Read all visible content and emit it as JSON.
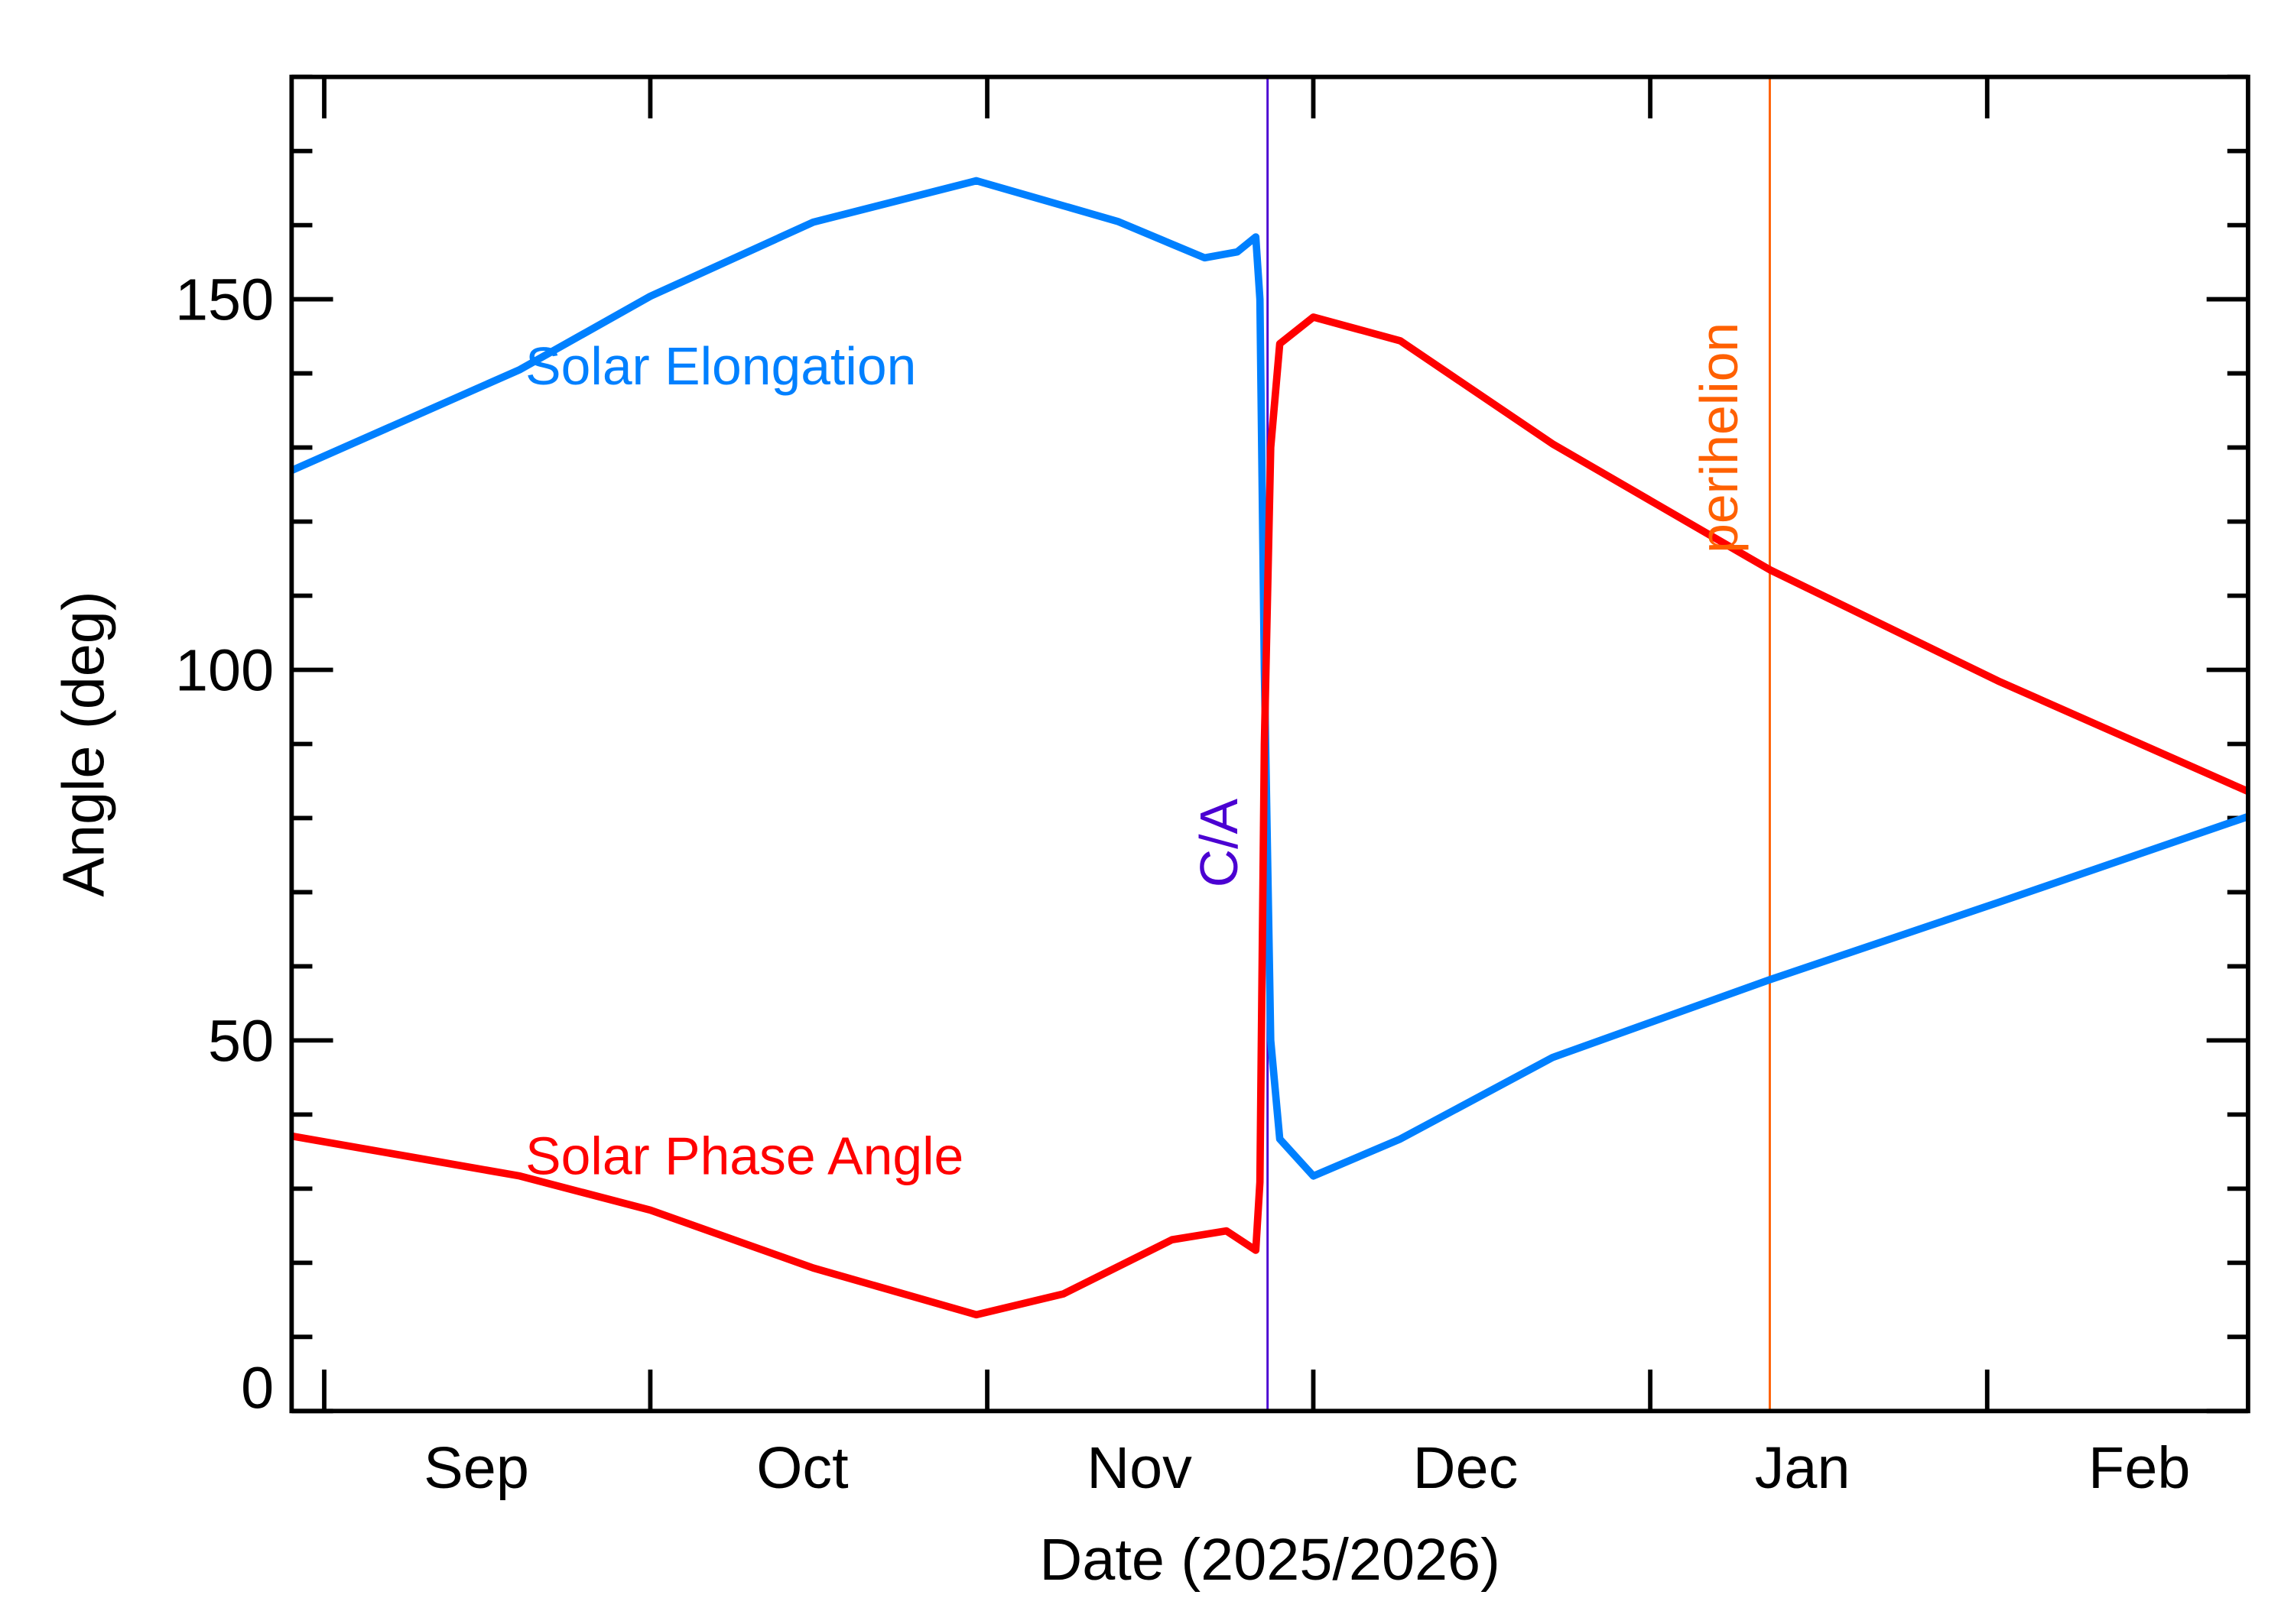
{
  "chart_data": {
    "type": "line",
    "xlabel": "Date (2025/2026)",
    "ylabel": "Angle (deg)",
    "xlim": [
      "2025-08-29",
      "2026-02-25"
    ],
    "ylim": [
      0,
      180
    ],
    "grid": false,
    "x_ticks": [
      {
        "date": "2025-09-01",
        "label": "Sep"
      },
      {
        "date": "2025-10-01",
        "label": "Oct"
      },
      {
        "date": "2025-11-01",
        "label": "Nov"
      },
      {
        "date": "2025-12-01",
        "label": "Dec"
      },
      {
        "date": "2026-01-01",
        "label": "Jan"
      },
      {
        "date": "2026-02-01",
        "label": "Feb"
      }
    ],
    "y_ticks": [
      0,
      50,
      100,
      150
    ],
    "y_minor_step": 10,
    "series": [
      {
        "name": "Solar Elongation",
        "color": "#0080ff",
        "points": [
          [
            "2025-08-29T00:00",
            126.9
          ],
          [
            "2025-09-19T00:00",
            140.5
          ],
          [
            "2025-10-01T00:00",
            150.4
          ],
          [
            "2025-10-16T00:00",
            160.4
          ],
          [
            "2025-10-31T00:00",
            166.0
          ],
          [
            "2025-11-13T00:00",
            160.5
          ],
          [
            "2025-11-21T00:00",
            155.6
          ],
          [
            "2025-11-24T00:00",
            156.4
          ],
          [
            "2025-11-25T17:00",
            158.4
          ],
          [
            "2025-11-26T02:00",
            150.0
          ],
          [
            "2025-11-26T12:00",
            100.0
          ],
          [
            "2025-11-27T02:00",
            50.0
          ],
          [
            "2025-11-27T22:00",
            36.7
          ],
          [
            "2025-12-01T00:00",
            31.7
          ],
          [
            "2025-12-09T00:00",
            36.7
          ],
          [
            "2025-12-23T00:00",
            47.7
          ],
          [
            "2026-01-12T00:00",
            58.2
          ],
          [
            "2026-02-02T00:00",
            68.6
          ],
          [
            "2026-02-25T00:00",
            80.2
          ]
        ]
      },
      {
        "name": "Solar Phase Angle",
        "color": "#ff0000",
        "points": [
          [
            "2025-08-29T00:00",
            37.1
          ],
          [
            "2025-09-19T00:00",
            31.7
          ],
          [
            "2025-10-01T00:00",
            27.1
          ],
          [
            "2025-10-16T00:00",
            19.3
          ],
          [
            "2025-10-31T00:00",
            13.0
          ],
          [
            "2025-11-08T00:00",
            15.8
          ],
          [
            "2025-11-18T00:00",
            23.1
          ],
          [
            "2025-11-23T00:00",
            24.3
          ],
          [
            "2025-11-25T17:00",
            21.7
          ],
          [
            "2025-11-26T02:00",
            30.9
          ],
          [
            "2025-11-26T12:00",
            90.0
          ],
          [
            "2025-11-27T02:00",
            130.0
          ],
          [
            "2025-11-27T22:00",
            144.0
          ],
          [
            "2025-12-01T00:00",
            147.6
          ],
          [
            "2025-12-09T00:00",
            144.4
          ],
          [
            "2025-12-23T00:00",
            130.5
          ],
          [
            "2026-01-12T00:00",
            113.5
          ],
          [
            "2026-02-02T00:00",
            98.5
          ],
          [
            "2026-02-25T00:00",
            83.6
          ]
        ]
      }
    ],
    "annotations": [
      {
        "label": "C/A",
        "date": "2025-11-26T19:00",
        "color": "#4b00d2"
      },
      {
        "label": "perihelion",
        "date": "2026-01-12T00:00",
        "color": "#ff6000"
      }
    ]
  }
}
